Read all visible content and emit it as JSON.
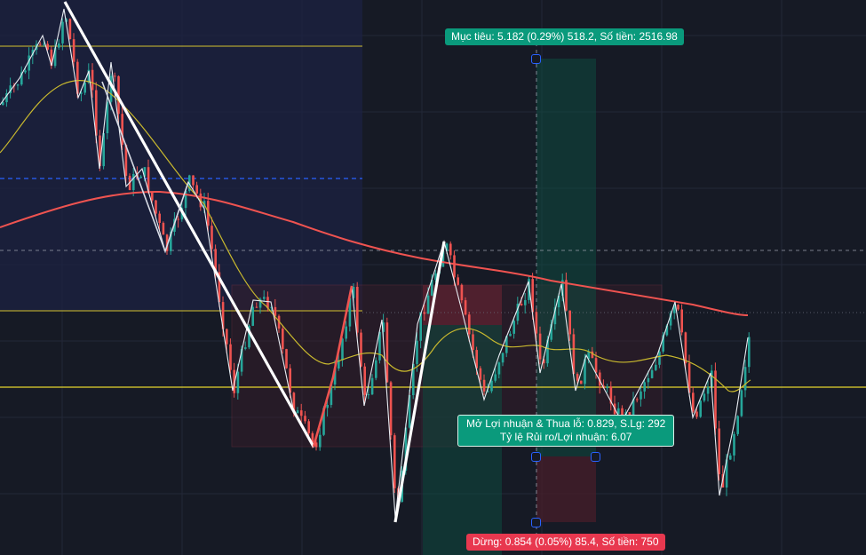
{
  "position_tool": {
    "target_label": "Mục tiêu: 5.182 (0.29%) 518.2, Số tiền: 2516.98",
    "stop_label": "Dừng: 0.854 (0.05%) 85.4, Số tiền: 750",
    "pl_line1": "Mở Lợi nhuận & Thua lỗ: 0.829, S.Lg: 292",
    "pl_line2": "Tỷ lệ Rủi ro/Lợi nhuận: 6.07"
  },
  "colors": {
    "background": "#161a25",
    "up_candle": "#26a69a",
    "down_candle": "#ef5350",
    "ma_fast": "#c9b92e",
    "ma_slow": "#ef5350",
    "horizontal_line": "#d4c22e",
    "dashed_blue": "#2962ff",
    "profit_zone": "#0f4a3f",
    "loss_zone": "#4a1e2a",
    "badge_profit": "#0a9a7c",
    "badge_loss": "#e8384f"
  },
  "icons": [
    "crosshair-icon",
    "anchor-handle-icon"
  ]
}
